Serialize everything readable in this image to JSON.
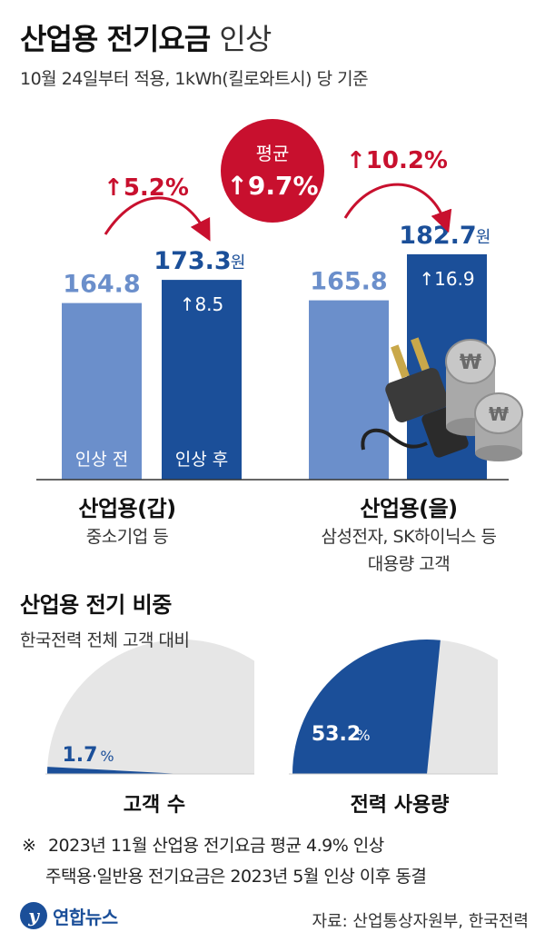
{
  "header": {
    "title_bold": "산업용 전기요금",
    "title_light": "인상",
    "subtitle": "10월 24일부터 적용, 1kWh(킬로와트시) 당 기준"
  },
  "colors": {
    "before": "#6b8fcb",
    "after": "#1b4f99",
    "accent_red": "#c8102e",
    "gauge_bg": "#e6e6e6"
  },
  "average_badge": {
    "label": "평균",
    "value": "↑9.7%"
  },
  "chart_data": {
    "type": "bar",
    "unit": "원",
    "groups": [
      {
        "name": "산업용(갑)",
        "desc": [
          "중소기업 등"
        ],
        "before": {
          "value": 164.8,
          "label": "164.8",
          "tag": "인상 전"
        },
        "after": {
          "value": 173.3,
          "label": "173.3",
          "tag": "인상 후"
        },
        "increase": "↑8.5",
        "pct": "↑5.2%"
      },
      {
        "name": "산업용(을)",
        "desc": [
          "삼성전자, SK하이닉스 등",
          "대용량 고객"
        ],
        "before": {
          "value": 165.8,
          "label": "165.8"
        },
        "after": {
          "value": 182.7,
          "label": "182.7"
        },
        "increase": "↑16.9",
        "pct": "↑10.2%"
      }
    ]
  },
  "share": {
    "title": "산업용 전기 비중",
    "subtitle": "한국전력 전체 고객 대비",
    "gauges": [
      {
        "label": "고객 수",
        "percent": 1.7,
        "percent_label": "1.7",
        "pct_sign": "%"
      },
      {
        "label": "전력 사용량",
        "percent": 53.2,
        "percent_label": "53.2",
        "pct_sign": "%"
      }
    ]
  },
  "notes": {
    "mark": "※",
    "line1": "2023년 11월 산업용 전기요금 평균 4.9% 인상",
    "line2": "주택용·일반용 전기요금은 2023년 5월 인상 이후 동결"
  },
  "footer": {
    "logo_text": "연합뉴스",
    "source": "자료: 산업통상자원부, 한국전력"
  },
  "icons": {
    "plug": "plug-icon",
    "coins": "won-coin-icon"
  }
}
